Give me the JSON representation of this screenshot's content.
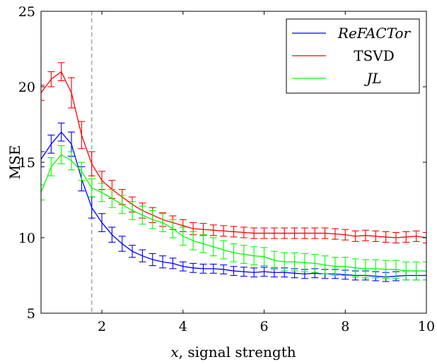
{
  "chart_data": {
    "type": "line",
    "xlabel_var": "x",
    "xlabel_rest": ", signal strength",
    "ylabel": "MSE",
    "xlim": [
      0.5,
      10
    ],
    "ylim": [
      5,
      25
    ],
    "xticks": [
      2,
      4,
      6,
      8,
      10
    ],
    "yticks": [
      5,
      10,
      15,
      20,
      25
    ],
    "vline_x": 1.75,
    "legend_position": "top-right",
    "grid": false,
    "x": [
      0.5,
      0.75,
      1.0,
      1.25,
      1.5,
      1.75,
      2.0,
      2.25,
      2.5,
      2.75,
      3.0,
      3.25,
      3.5,
      3.75,
      4.0,
      4.25,
      4.5,
      4.75,
      5.0,
      5.25,
      5.5,
      5.75,
      6.0,
      6.25,
      6.5,
      6.75,
      7.0,
      7.25,
      7.5,
      7.75,
      8.0,
      8.25,
      8.5,
      8.75,
      9.0,
      9.25,
      9.5,
      9.75,
      10.0
    ],
    "series": [
      {
        "name": "ReFACTor",
        "italic": true,
        "color": "#0000ff",
        "values": [
          15.2,
          16.2,
          17.0,
          16.2,
          13.9,
          12.0,
          11.0,
          10.2,
          9.6,
          9.1,
          8.8,
          8.55,
          8.4,
          8.3,
          8.1,
          8.0,
          7.95,
          7.95,
          7.9,
          7.8,
          7.75,
          7.7,
          7.75,
          7.7,
          7.7,
          7.65,
          7.6,
          7.65,
          7.6,
          7.6,
          7.55,
          7.5,
          7.5,
          7.45,
          7.4,
          7.45,
          7.5,
          7.5,
          7.5
        ],
        "err": [
          0.5,
          0.6,
          0.6,
          0.8,
          0.8,
          0.7,
          0.6,
          0.5,
          0.5,
          0.4,
          0.4,
          0.4,
          0.4,
          0.35,
          0.3,
          0.3,
          0.3,
          0.3,
          0.3,
          0.3,
          0.3,
          0.3,
          0.3,
          0.3,
          0.3,
          0.3,
          0.3,
          0.3,
          0.3,
          0.3,
          0.3,
          0.3,
          0.3,
          0.3,
          0.3,
          0.3,
          0.3,
          0.3,
          0.3
        ]
      },
      {
        "name": "TSVD",
        "italic": false,
        "color": "#ff0000",
        "values": [
          19.6,
          20.5,
          21.0,
          19.6,
          16.8,
          14.9,
          13.8,
          13.2,
          12.7,
          12.2,
          11.8,
          11.5,
          11.2,
          11.0,
          10.8,
          10.6,
          10.55,
          10.5,
          10.45,
          10.4,
          10.35,
          10.3,
          10.3,
          10.3,
          10.3,
          10.3,
          10.3,
          10.3,
          10.3,
          10.25,
          10.2,
          10.1,
          10.15,
          10.1,
          10.05,
          10.0,
          10.05,
          10.1,
          10.0
        ],
        "err": [
          0.5,
          0.5,
          0.6,
          1.0,
          0.9,
          0.8,
          0.6,
          0.6,
          0.5,
          0.5,
          0.5,
          0.5,
          0.45,
          0.45,
          0.4,
          0.4,
          0.4,
          0.35,
          0.35,
          0.35,
          0.35,
          0.35,
          0.35,
          0.35,
          0.35,
          0.35,
          0.35,
          0.35,
          0.35,
          0.35,
          0.35,
          0.35,
          0.35,
          0.35,
          0.35,
          0.35,
          0.35,
          0.35,
          0.35
        ]
      },
      {
        "name": "JL",
        "italic": true,
        "color": "#00ff00",
        "values": [
          13.0,
          14.7,
          15.5,
          15.1,
          14.4,
          13.3,
          13.0,
          12.6,
          12.2,
          11.8,
          11.5,
          11.2,
          11.0,
          10.6,
          10.1,
          9.8,
          9.6,
          9.4,
          9.2,
          9.0,
          8.9,
          8.8,
          8.75,
          8.5,
          8.4,
          8.4,
          8.35,
          8.3,
          8.2,
          8.1,
          8.1,
          8.0,
          7.95,
          7.95,
          7.9,
          7.9,
          7.8,
          7.8,
          7.8
        ],
        "err": [
          0.5,
          0.6,
          0.6,
          0.6,
          0.6,
          0.6,
          0.6,
          0.6,
          0.6,
          0.6,
          0.6,
          0.6,
          0.6,
          0.6,
          0.6,
          0.6,
          0.6,
          0.6,
          0.6,
          0.6,
          0.6,
          0.6,
          0.6,
          0.6,
          0.6,
          0.6,
          0.6,
          0.6,
          0.6,
          0.6,
          0.6,
          0.6,
          0.6,
          0.6,
          0.6,
          0.6,
          0.6,
          0.6,
          0.6
        ]
      }
    ]
  }
}
